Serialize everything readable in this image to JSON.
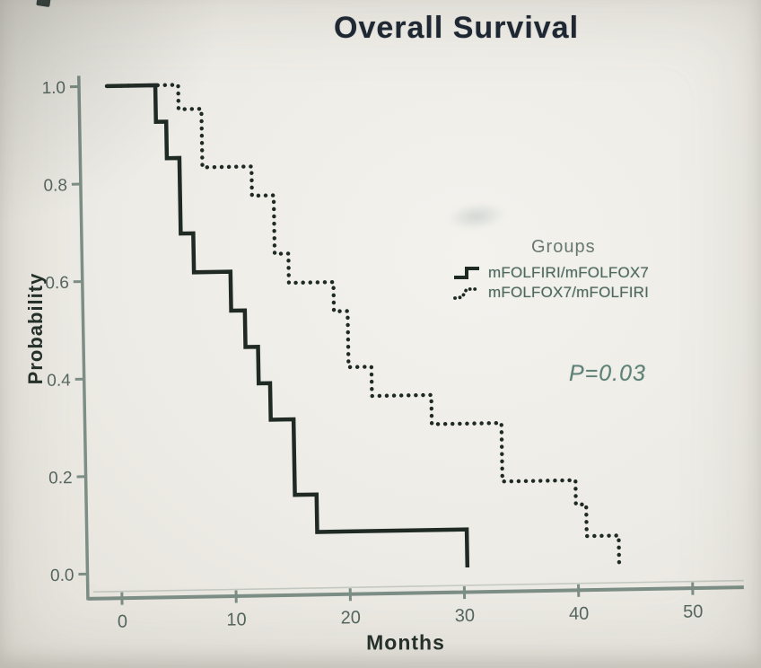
{
  "chart_data": {
    "type": "line",
    "subtype": "kaplan-meier-step",
    "title": "Overall Survival",
    "xlabel": "Months",
    "ylabel": "Probability",
    "x_ticks": [
      0,
      10,
      20,
      30,
      40,
      50
    ],
    "y_ticks": [
      0.0,
      0.2,
      0.4,
      0.6,
      0.8,
      1.0
    ],
    "xlim": [
      0,
      52
    ],
    "ylim": [
      0,
      1.0
    ],
    "grid": false,
    "legend_title": "Groups",
    "legend_position": "center-right",
    "annotation": "P=0.03",
    "series": [
      {
        "name": "mFOLFIRI/mFOLFOX7",
        "style": "solid",
        "points_note": "each point = [months, survival probability after drop]",
        "points": [
          [
            0,
            1.0
          ],
          [
            3.7,
            0.925
          ],
          [
            4.6,
            0.85
          ],
          [
            5.7,
            0.695
          ],
          [
            6.8,
            0.615
          ],
          [
            10.0,
            0.535
          ],
          [
            11.2,
            0.46
          ],
          [
            12.3,
            0.385
          ],
          [
            13.3,
            0.31
          ],
          [
            15.3,
            0.155
          ],
          [
            17.2,
            0.078
          ],
          [
            30.3,
            0.0
          ]
        ]
      },
      {
        "name": "mFOLFOX7/mFOLFIRI",
        "style": "dotted",
        "points_note": "each point = [months, survival probability after drop]",
        "points": [
          [
            0,
            1.0
          ],
          [
            5.7,
            0.95
          ],
          [
            7.7,
            0.83
          ],
          [
            12.0,
            0.77
          ],
          [
            13.9,
            0.65
          ],
          [
            15.1,
            0.59
          ],
          [
            19.0,
            0.53
          ],
          [
            20.2,
            0.415
          ],
          [
            22.2,
            0.355
          ],
          [
            27.4,
            0.295
          ],
          [
            33.5,
            0.175
          ],
          [
            39.9,
            0.125
          ],
          [
            40.8,
            0.06
          ],
          [
            43.6,
            0.0
          ]
        ]
      }
    ],
    "colors": {
      "curve": "#202a25",
      "axis": "#7c8e86",
      "tick_text": "#55665f",
      "title_text": "#1b2531",
      "legend_text": "#4e6860",
      "p_value_text": "#5d8077",
      "background": "#edebe5"
    }
  }
}
